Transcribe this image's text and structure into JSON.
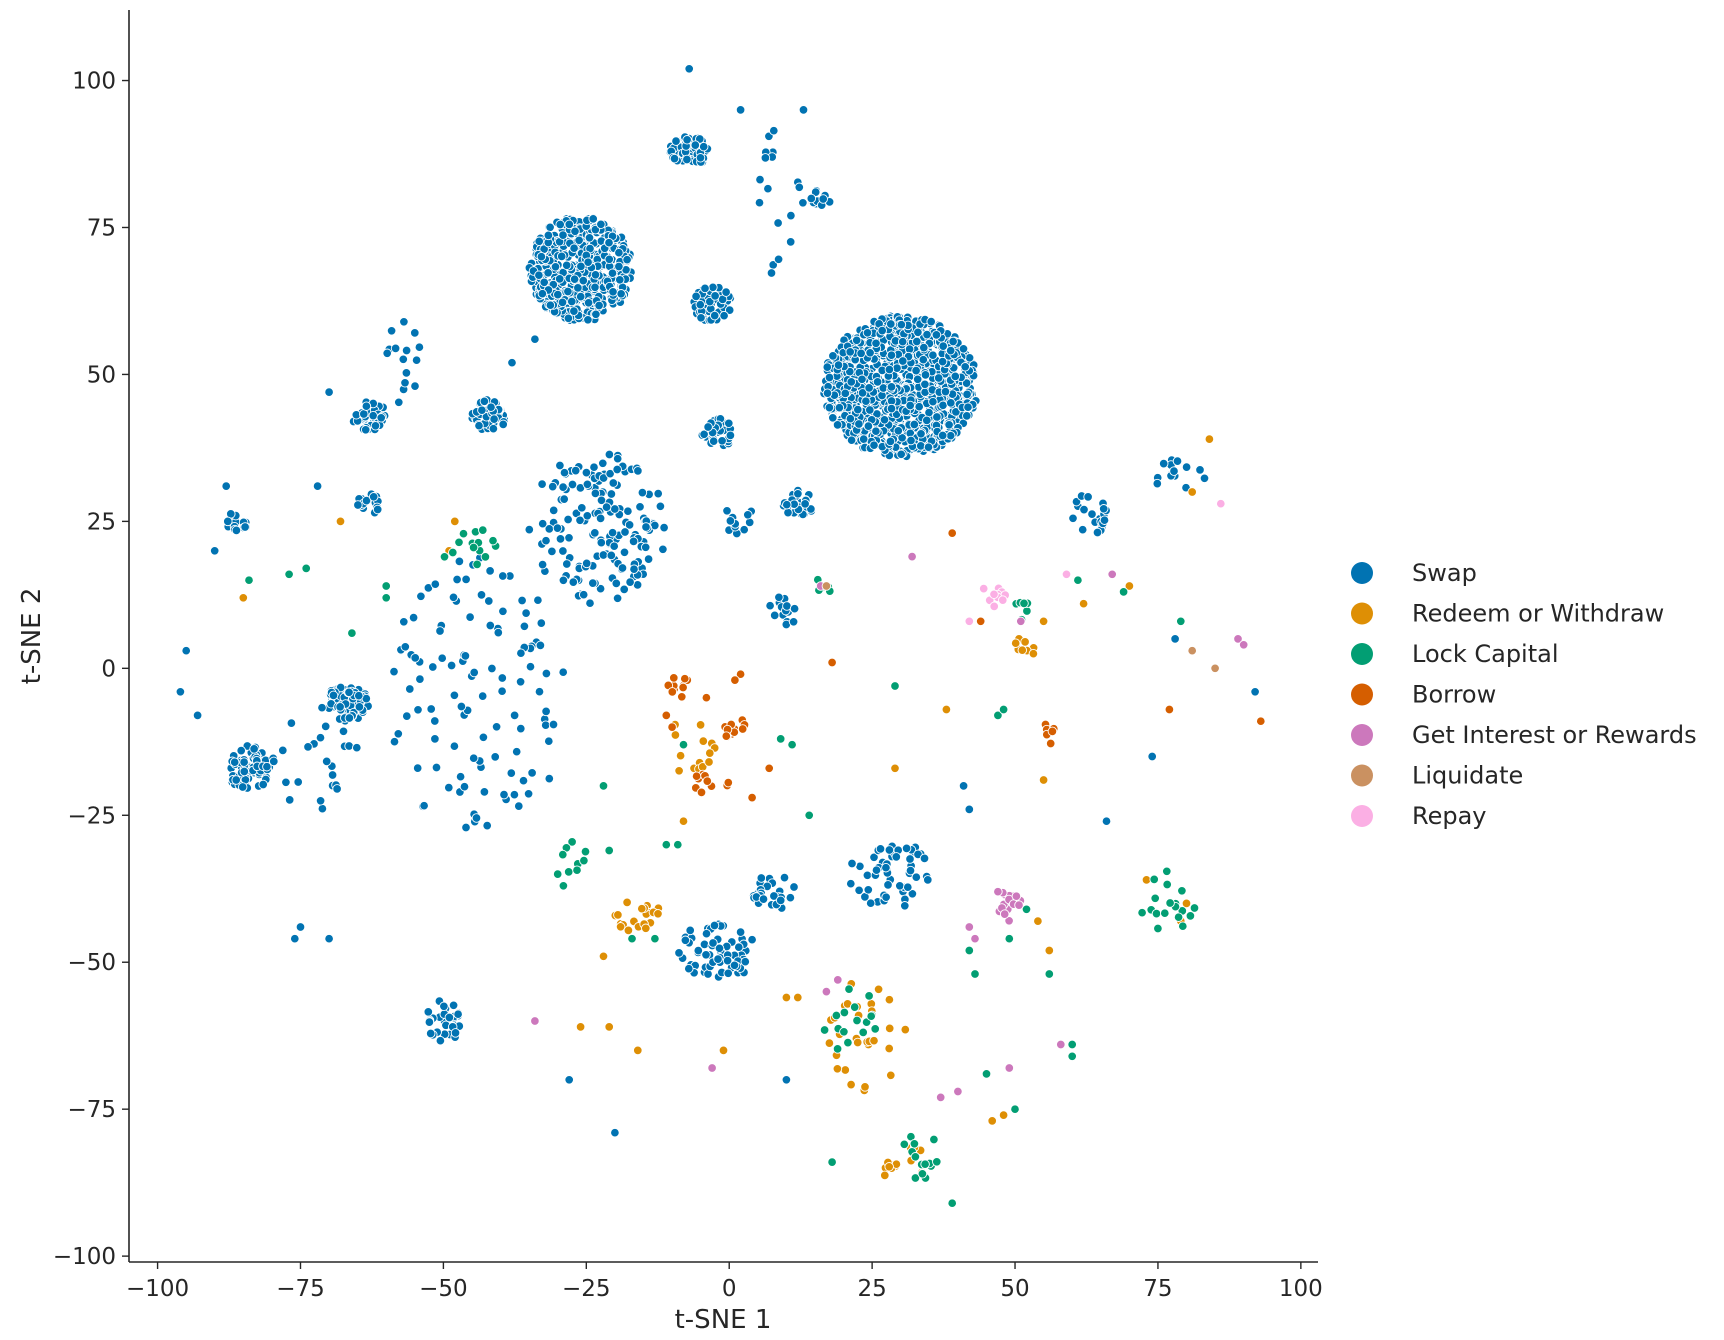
{
  "chart_data": {
    "type": "scatter",
    "xlabel": "t-SNE 1",
    "ylabel": "t-SNE 2",
    "xlim": [
      -105,
      103
    ],
    "ylim": [
      -101,
      112
    ],
    "xticks": [
      -100,
      -75,
      -50,
      -25,
      0,
      25,
      50,
      75,
      100
    ],
    "yticks": [
      -100,
      -75,
      -50,
      -25,
      0,
      25,
      50,
      75,
      100
    ],
    "xtick_labels": [
      "−100",
      "−75",
      "−50",
      "−25",
      "0",
      "25",
      "50",
      "75",
      "100"
    ],
    "ytick_labels": [
      "−100",
      "−75",
      "−50",
      "−25",
      "0",
      "25",
      "50",
      "75",
      "100"
    ],
    "grid": false,
    "legend_position": "right",
    "series": [
      {
        "name": "Swap",
        "color": "#0173b2",
        "clusters": [
          {
            "center": [
              -26,
              68
            ],
            "radius": [
              9,
              9
            ],
            "count": 520
          },
          {
            "center": [
              30,
              48
            ],
            "radius": [
              13.5,
              12
            ],
            "count": 1000
          },
          {
            "center": [
              -7,
              88
            ],
            "radius": [
              3.5,
              2.5
            ],
            "count": 60
          },
          {
            "center": [
              -3,
              62
            ],
            "radius": [
              3.5,
              3
            ],
            "count": 60
          },
          {
            "center": [
              -42,
              43
            ],
            "radius": [
              3,
              2.8
            ],
            "count": 50
          },
          {
            "center": [
              -63,
              43
            ],
            "radius": [
              3,
              2.5
            ],
            "count": 40
          },
          {
            "center": [
              -2,
              40
            ],
            "radius": [
              2.8,
              2.5
            ],
            "count": 35
          },
          {
            "center": [
              12,
              28
            ],
            "radius": [
              2.8,
              2.3
            ],
            "count": 35
          },
          {
            "center": [
              -86,
              25
            ],
            "radius": [
              2,
              2
            ],
            "count": 15
          },
          {
            "center": [
              -63,
              28
            ],
            "radius": [
              2,
              1.8
            ],
            "count": 18
          },
          {
            "center": [
              -67,
              -6
            ],
            "radius": [
              4,
              3
            ],
            "count": 70
          },
          {
            "center": [
              -84,
              -17
            ],
            "radius": [
              3.8,
              3.8
            ],
            "count": 80
          },
          {
            "center": [
              16,
              80
            ],
            "radius": [
              2,
              1.5
            ],
            "count": 12
          },
          {
            "center": [
              -23,
              24
            ],
            "radius": [
              12,
              13
            ],
            "count": 160
          },
          {
            "center": [
              -44,
              -5
            ],
            "radius": [
              16,
              24
            ],
            "count": 110
          },
          {
            "center": [
              -2,
              -48
            ],
            "radius": [
              7,
              5
            ],
            "count": 60
          },
          {
            "center": [
              -50,
              -60
            ],
            "radius": [
              3,
              4
            ],
            "count": 30
          },
          {
            "center": [
              28,
              -35
            ],
            "radius": [
              7,
              6
            ],
            "count": 55
          },
          {
            "center": [
              8,
              -38
            ],
            "radius": [
              4,
              3
            ],
            "count": 25
          },
          {
            "center": [
              63,
              26
            ],
            "radius": [
              3,
              4
            ],
            "count": 20
          },
          {
            "center": [
              79,
              33
            ],
            "radius": [
              5,
              3
            ],
            "count": 14
          },
          {
            "center": [
              10,
              10
            ],
            "radius": [
              3,
              3
            ],
            "count": 15
          },
          {
            "center": [
              2,
              25
            ],
            "radius": [
              3,
              3
            ],
            "count": 12
          },
          {
            "center": [
              -73,
              -15
            ],
            "radius": [
              8,
              10
            ],
            "count": 25
          },
          {
            "center": [
              -57,
              52
            ],
            "radius": [
              3,
              8
            ],
            "count": 15
          },
          {
            "center": [
              8,
              80
            ],
            "radius": [
              6,
              14
            ],
            "count": 18
          }
        ],
        "points": [
          [
            -7,
            102
          ],
          [
            2,
            95
          ],
          [
            13,
            95
          ],
          [
            -95,
            3
          ],
          [
            -96,
            -4
          ],
          [
            -93,
            -8
          ],
          [
            -20,
            -79
          ],
          [
            -28,
            -70
          ],
          [
            -75,
            -44
          ],
          [
            -76,
            -46
          ],
          [
            -70,
            -46
          ],
          [
            66,
            -26
          ],
          [
            74,
            -15
          ],
          [
            92,
            -4
          ],
          [
            78,
            5
          ],
          [
            41,
            -20
          ],
          [
            42,
            -24
          ],
          [
            10,
            -70
          ],
          [
            -38,
            52
          ],
          [
            -34,
            56
          ],
          [
            -70,
            47
          ],
          [
            -72,
            31
          ],
          [
            -88,
            31
          ],
          [
            -90,
            20
          ]
        ]
      },
      {
        "name": "Redeem or Withdraw",
        "color": "#de8f05",
        "clusters": [
          {
            "center": [
              -16,
              -42
            ],
            "radius": [
              4,
              3
            ],
            "count": 20
          },
          {
            "center": [
              24,
              -62
            ],
            "radius": [
              7,
              10
            ],
            "count": 30
          },
          {
            "center": [
              30,
              -84
            ],
            "radius": [
              5,
              3
            ],
            "count": 15
          },
          {
            "center": [
              52,
              4
            ],
            "radius": [
              2,
              2
            ],
            "count": 8
          },
          {
            "center": [
              -7,
              -13
            ],
            "radius": [
              5,
              5
            ],
            "count": 14
          }
        ],
        "points": [
          [
            -85,
            12
          ],
          [
            -68,
            25
          ],
          [
            -48,
            25
          ],
          [
            -49,
            20
          ],
          [
            84,
            39
          ],
          [
            81,
            30
          ],
          [
            62,
            11
          ],
          [
            70,
            14
          ],
          [
            55,
            -19
          ],
          [
            38,
            -7
          ],
          [
            29,
            -17
          ],
          [
            -8,
            -26
          ],
          [
            -22,
            -49
          ],
          [
            -26,
            -61
          ],
          [
            -21,
            -61
          ],
          [
            -16,
            -65
          ],
          [
            -1,
            -65
          ],
          [
            10,
            -56
          ],
          [
            12,
            -56
          ],
          [
            46,
            -77
          ],
          [
            48,
            -76
          ],
          [
            56,
            -48
          ],
          [
            54,
            -43
          ],
          [
            80,
            -40
          ],
          [
            79,
            -43
          ],
          [
            73,
            -36
          ],
          [
            55,
            8
          ]
        ]
      },
      {
        "name": "Lock Capital",
        "color": "#029e73",
        "clusters": [
          {
            "center": [
              -45,
              20
            ],
            "radius": [
              5,
              4
            ],
            "count": 14
          },
          {
            "center": [
              22,
              -60
            ],
            "radius": [
              6,
              6
            ],
            "count": 16
          },
          {
            "center": [
              34,
              -83
            ],
            "radius": [
              4,
              4
            ],
            "count": 14
          },
          {
            "center": [
              77,
              -40
            ],
            "radius": [
              5,
              6
            ],
            "count": 18
          },
          {
            "center": [
              51,
              10
            ],
            "radius": [
              2,
              2
            ],
            "count": 6
          },
          {
            "center": [
              -27,
              -32
            ],
            "radius": [
              3,
              3
            ],
            "count": 8
          },
          {
            "center": [
              16,
              14
            ],
            "radius": [
              2,
              2
            ],
            "count": 5
          }
        ],
        "points": [
          [
            -84,
            15
          ],
          [
            -77,
            16
          ],
          [
            -74,
            17
          ],
          [
            -66,
            6
          ],
          [
            -60,
            14
          ],
          [
            -60,
            12
          ],
          [
            -30,
            -35
          ],
          [
            -29,
            -37
          ],
          [
            -21,
            -31
          ],
          [
            -11,
            -30
          ],
          [
            -9,
            -30
          ],
          [
            -8,
            -13
          ],
          [
            9,
            -12
          ],
          [
            11,
            -13
          ],
          [
            14,
            -25
          ],
          [
            29,
            -3
          ],
          [
            47,
            -8
          ],
          [
            48,
            -7
          ],
          [
            49,
            -46
          ],
          [
            52,
            -41
          ],
          [
            56,
            -52
          ],
          [
            60,
            -64
          ],
          [
            60,
            -66
          ],
          [
            42,
            -48
          ],
          [
            43,
            -52
          ],
          [
            45,
            -69
          ],
          [
            50,
            -75
          ],
          [
            39,
            -91
          ],
          [
            18,
            -84
          ],
          [
            79,
            8
          ],
          [
            69,
            13
          ],
          [
            61,
            15
          ],
          [
            -13,
            -46
          ],
          [
            -17,
            -46
          ],
          [
            -22,
            -20
          ]
        ]
      },
      {
        "name": "Borrow",
        "color": "#d55e00",
        "clusters": [
          {
            "center": [
              -9,
              -3
            ],
            "radius": [
              2,
              2
            ],
            "count": 10
          },
          {
            "center": [
              1,
              -11
            ],
            "radius": [
              2,
              3
            ],
            "count": 12
          },
          {
            "center": [
              -4,
              -20
            ],
            "radius": [
              4,
              2
            ],
            "count": 10
          },
          {
            "center": [
              56,
              -11
            ],
            "radius": [
              1,
              2
            ],
            "count": 6
          }
        ],
        "points": [
          [
            39,
            23
          ],
          [
            18,
            1
          ],
          [
            2,
            -1
          ],
          [
            1,
            -2
          ],
          [
            -10,
            -10
          ],
          [
            -11,
            -8
          ],
          [
            -4,
            -5
          ],
          [
            93,
            -9
          ],
          [
            77,
            -7
          ],
          [
            44,
            8
          ],
          [
            4,
            -22
          ],
          [
            7,
            -17
          ]
        ]
      },
      {
        "name": "Get Interest or Rewards",
        "color": "#cc78bc",
        "clusters": [
          {
            "center": [
              49,
              -40
            ],
            "radius": [
              2,
              3
            ],
            "count": 18
          }
        ],
        "points": [
          [
            -34,
            -60
          ],
          [
            -3,
            -68
          ],
          [
            19,
            -53
          ],
          [
            17,
            -55
          ],
          [
            37,
            -73
          ],
          [
            40,
            -72
          ],
          [
            49,
            -68
          ],
          [
            42,
            -44
          ],
          [
            43,
            -46
          ],
          [
            58,
            -64
          ],
          [
            89,
            5
          ],
          [
            90,
            4
          ],
          [
            67,
            16
          ],
          [
            32,
            19
          ],
          [
            16,
            14
          ],
          [
            51,
            8
          ],
          [
            47,
            -38
          ]
        ]
      },
      {
        "name": "Liquidate",
        "color": "#ca9161",
        "clusters": [],
        "points": [
          [
            81,
            3
          ],
          [
            85,
            0
          ],
          [
            17,
            14
          ]
        ]
      },
      {
        "name": "Repay",
        "color": "#fbafe4",
        "clusters": [
          {
            "center": [
              46,
              12
            ],
            "radius": [
              3,
              2
            ],
            "count": 10
          }
        ],
        "points": [
          [
            59,
            16
          ],
          [
            86,
            28
          ],
          [
            42,
            8
          ]
        ]
      }
    ]
  }
}
